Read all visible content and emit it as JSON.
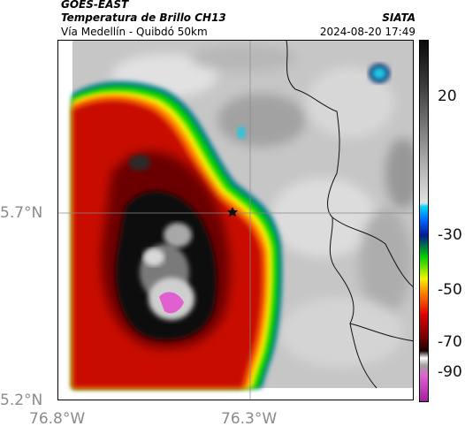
{
  "header": {
    "satellite": "GOES-EAST",
    "product": "Temperatura de Brillo CH13",
    "region": "Vía Medellín - Quibdó 50km",
    "source": "SIATA",
    "datetime": "2024-08-20 17:49"
  },
  "axes": {
    "lat_ticks": [
      "5.7°N",
      "5.2°N"
    ],
    "lon_ticks": [
      "76.8°W",
      "76.3°W"
    ]
  },
  "colorbar": {
    "tick_labels": [
      "20",
      "-30",
      "-50",
      "-70",
      "-90"
    ]
  },
  "map": {
    "marker": "star",
    "colors": {
      "background_gray": "#c9c9c9",
      "cold_cloud_red": "#c81000",
      "core_black": "#0c0c0c",
      "coldest_magenta": "#e060d0",
      "edge_green": "#00d000",
      "edge_yellow": "#f4f400",
      "cyan_patch": "#20c8e0"
    }
  }
}
